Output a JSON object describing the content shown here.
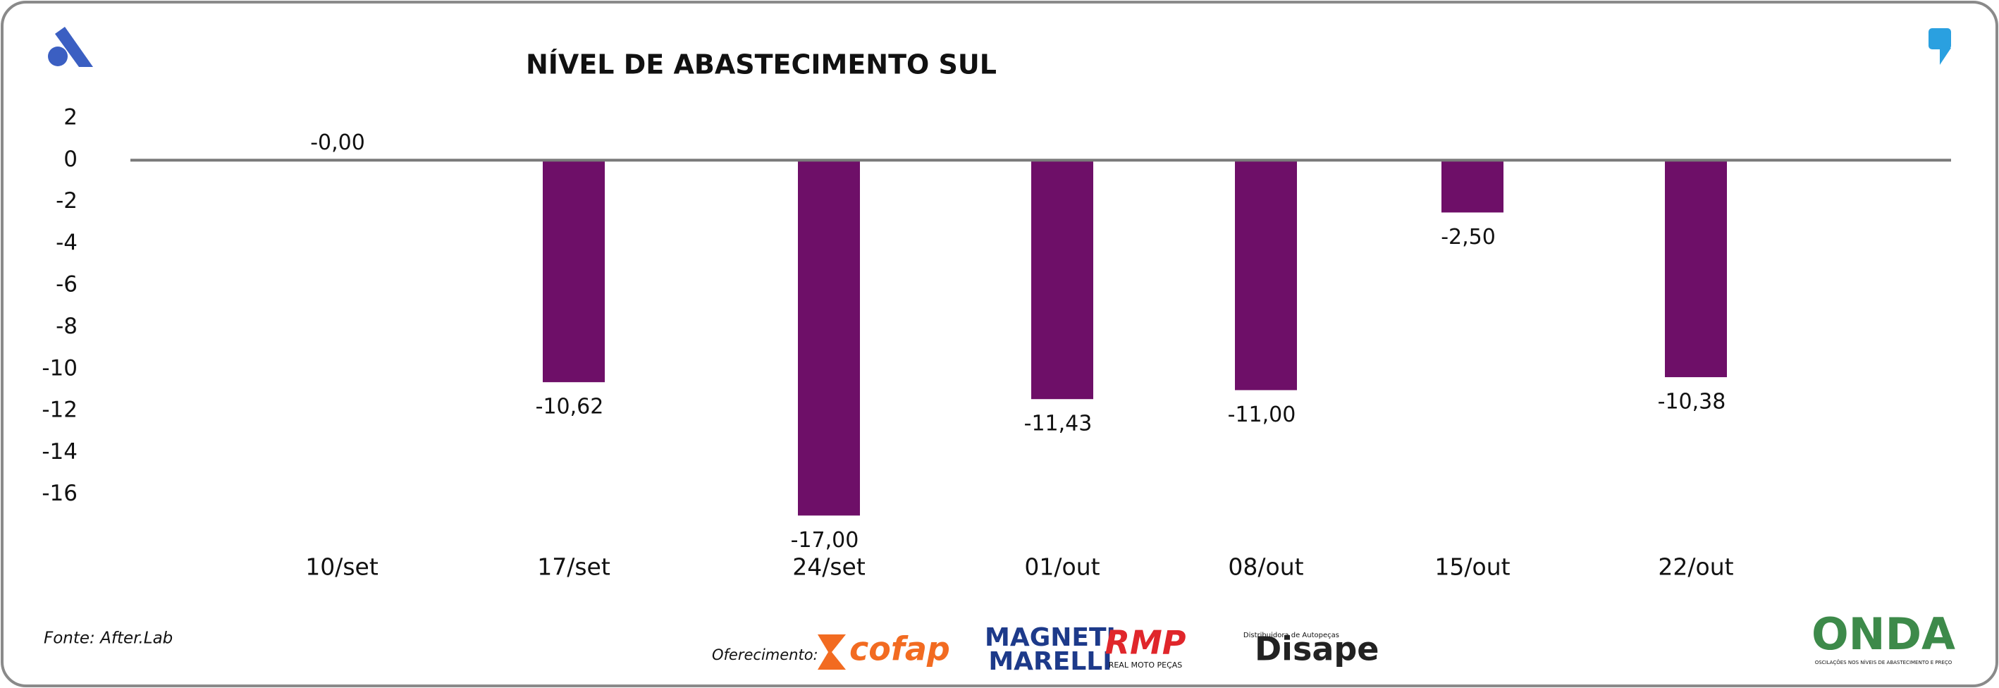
{
  "chart_data": {
    "type": "bar",
    "title": "NÍVEL DE ABASTECIMENTO SUL",
    "categories": [
      "10/set",
      "17/set",
      "24/set",
      "01/out",
      "08/out",
      "15/out",
      "22/out"
    ],
    "values": [
      0,
      -10.62,
      -17,
      -11.43,
      -11,
      -2.5,
      -10.38
    ],
    "value_labels": [
      "-0,00",
      "-10,62",
      "-17,00",
      "-11,43",
      "-11,00",
      "-2,50",
      "-10,38"
    ],
    "color": "#6e0f68",
    "ylim": [
      -18,
      2
    ],
    "yticks": [
      2,
      0,
      -2,
      -4,
      -6,
      -8,
      -10,
      -12,
      -14,
      -16
    ],
    "grid": false,
    "source": "Fonte: After.Lab",
    "sponsor_label": "Oferecimento:",
    "sponsors": [
      "cofap",
      "MAGNETI",
      "MARELLI",
      "RMP",
      "REAL MOTO PEÇAS",
      "Disape",
      "Distribuidora de Autopeças"
    ],
    "brand": "ONDA",
    "brand_tagline": "OSCILAÇÕES NOS NÍVEIS DE ABASTECIMENTO E PREÇO"
  }
}
